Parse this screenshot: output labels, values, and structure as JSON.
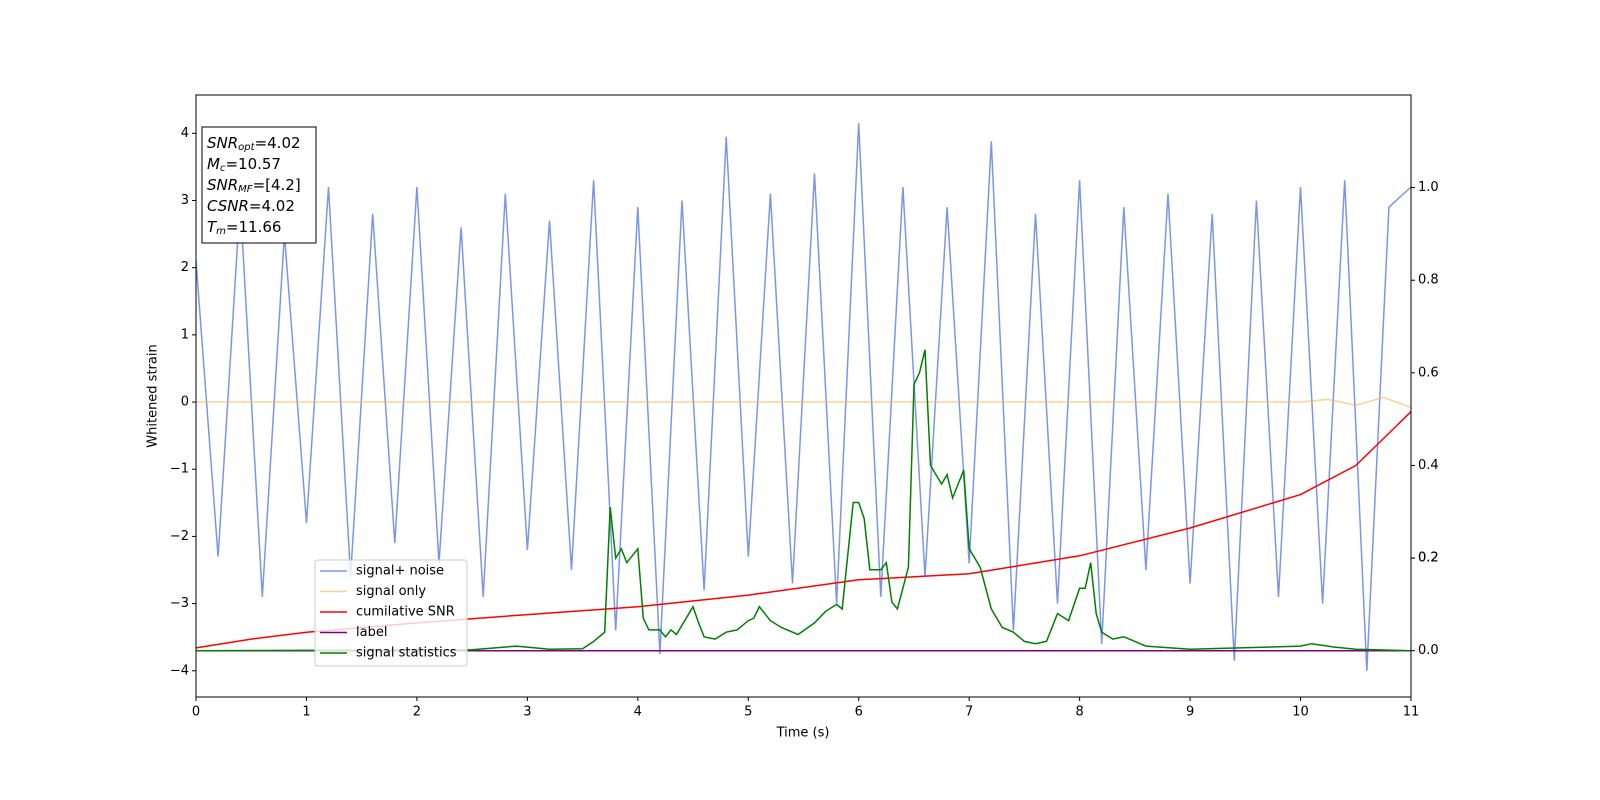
{
  "chart_data": {
    "type": "line",
    "xlabel": "Time (s)",
    "ylabel": "Whitened strain",
    "xlim": [
      0,
      11
    ],
    "xticks": [
      0,
      1,
      2,
      3,
      4,
      5,
      6,
      7,
      8,
      9,
      10,
      11
    ],
    "ylim": [
      -4.39,
      4.57
    ],
    "yticks": [
      {
        "value": -4,
        "label": "−4"
      },
      {
        "value": -3,
        "label": "−3"
      },
      {
        "value": -2,
        "label": "−2"
      },
      {
        "value": -1,
        "label": "−1"
      },
      0,
      1,
      2,
      3,
      4
    ],
    "y2lim": [
      -0.1,
      1.2
    ],
    "y2ticks": [
      {
        "value": 0,
        "label": "0.0"
      },
      0.2,
      0.4,
      0.6,
      0.8,
      {
        "value": 1,
        "label": "1.0"
      },
      0.2
    ],
    "legend": "lower left",
    "annotation": [
      {
        "name": "SNR",
        "sub": "opt",
        "value": "=4.02"
      },
      {
        "name": "M",
        "sub": "c",
        "value": "=10.57"
      },
      {
        "name": "SNR",
        "sub": "MF",
        "value": "=[4.2]"
      },
      {
        "name": "CSNR",
        "value": "=4.02"
      },
      {
        "name": "T",
        "sub": "m",
        "value": "=11.66"
      }
    ],
    "series": [
      {
        "name": "signal+ noise",
        "color": "#7b96e8",
        "x": [
          0,
          0.2,
          0.4,
          0.6,
          0.8,
          1,
          1.2,
          1.4,
          1.6,
          1.8,
          2,
          2.2,
          2.4,
          2.6,
          2.8,
          3,
          3.2,
          3.4,
          3.6,
          3.8,
          4,
          4.2,
          4.4,
          4.6,
          4.8,
          5,
          5.2,
          5.4,
          5.6,
          5.8,
          6,
          6.2,
          6.4,
          6.6,
          6.8,
          7,
          7.2,
          7.4,
          7.6,
          7.8,
          8,
          8.2,
          8.4,
          8.6,
          8.8,
          9,
          9.2,
          9.4,
          9.6,
          9.8,
          10,
          10.2,
          10.4,
          10.6,
          10.8,
          11
        ],
        "values": [
          2.1,
          -2.3,
          3.0,
          -2.9,
          2.5,
          -1.8,
          3.2,
          -2.6,
          2.8,
          -2.1,
          3.2,
          -2.4,
          2.6,
          -2.9,
          3.1,
          -2.2,
          2.7,
          -2.5,
          3.3,
          -3.4,
          2.9,
          -3.75,
          3.0,
          -2.8,
          3.95,
          -2.3,
          3.1,
          -2.7,
          3.4,
          -3.0,
          4.15,
          -2.9,
          3.2,
          -2.6,
          2.9,
          -2.4,
          3.88,
          -3.4,
          2.8,
          -3.0,
          3.3,
          -3.6,
          2.9,
          -2.5,
          3.1,
          -2.7,
          2.8,
          -3.85,
          3.0,
          -2.9,
          3.2,
          -3.0,
          3.3,
          -4.0,
          2.9,
          3.2
        ]
      },
      {
        "name": "signal only",
        "color": "#f5b64a",
        "x": [
          0,
          1,
          2,
          3,
          4,
          5,
          6,
          7,
          8,
          9,
          10,
          10.25,
          10.5,
          10.75,
          11
        ],
        "values": [
          0,
          0,
          0,
          0,
          0,
          0,
          0,
          0,
          0,
          0,
          0,
          0.04,
          -0.05,
          0.07,
          -0.08
        ]
      },
      {
        "name": "cumilative SNR",
        "color": "#ff0000",
        "axis": "y2",
        "x": [
          0,
          0.5,
          1,
          2,
          3,
          4,
          5,
          6,
          7,
          8,
          9,
          10,
          10.5,
          11
        ],
        "values": [
          0.006,
          0.025,
          0.04,
          0.06,
          0.078,
          0.095,
          0.12,
          0.153,
          0.166,
          0.205,
          0.265,
          0.337,
          0.4,
          0.516
        ]
      },
      {
        "name": "label",
        "color": "#800080",
        "axis": "y2",
        "x": [
          0,
          11
        ],
        "values": [
          0,
          0
        ]
      },
      {
        "name": "signal statistics",
        "color": "#008000",
        "axis": "y2",
        "x": [
          0,
          2.5,
          2.9,
          3.2,
          3.5,
          3.6,
          3.7,
          3.75,
          3.8,
          3.85,
          3.9,
          4.0,
          4.05,
          4.1,
          4.2,
          4.25,
          4.3,
          4.35,
          4.4,
          4.5,
          4.55,
          4.6,
          4.7,
          4.8,
          4.9,
          5.0,
          5.05,
          5.1,
          5.2,
          5.3,
          5.45,
          5.6,
          5.7,
          5.8,
          5.85,
          5.95,
          6.0,
          6.05,
          6.1,
          6.2,
          6.25,
          6.3,
          6.35,
          6.45,
          6.5,
          6.55,
          6.6,
          6.65,
          6.75,
          6.8,
          6.85,
          6.95,
          7.0,
          7.1,
          7.2,
          7.3,
          7.4,
          7.5,
          7.6,
          7.7,
          7.8,
          7.9,
          8.0,
          8.05,
          8.1,
          8.15,
          8.2,
          8.3,
          8.4,
          8.5,
          8.6,
          9.0,
          10.0,
          10.1,
          10.3,
          10.5,
          11.0
        ],
        "values": [
          0,
          0.002,
          0.01,
          0.003,
          0.004,
          0.02,
          0.04,
          0.31,
          0.2,
          0.22,
          0.19,
          0.22,
          0.07,
          0.045,
          0.045,
          0.03,
          0.045,
          0.035,
          0.055,
          0.095,
          0.06,
          0.03,
          0.025,
          0.04,
          0.045,
          0.065,
          0.07,
          0.095,
          0.065,
          0.05,
          0.035,
          0.06,
          0.085,
          0.1,
          0.09,
          0.32,
          0.32,
          0.285,
          0.175,
          0.175,
          0.19,
          0.105,
          0.09,
          0.18,
          0.575,
          0.6,
          0.65,
          0.4,
          0.36,
          0.38,
          0.33,
          0.39,
          0.22,
          0.18,
          0.09,
          0.05,
          0.04,
          0.02,
          0.015,
          0.02,
          0.08,
          0.065,
          0.135,
          0.135,
          0.19,
          0.08,
          0.04,
          0.025,
          0.03,
          0.02,
          0.01,
          0.003,
          0.01,
          0.015,
          0.008,
          0.003,
          0
        ]
      }
    ]
  }
}
